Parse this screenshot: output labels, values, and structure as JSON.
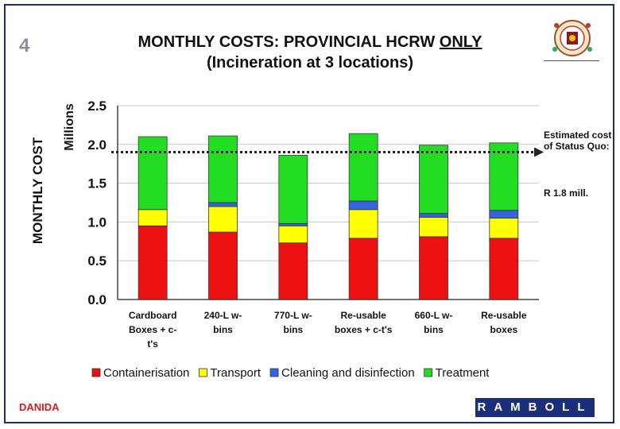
{
  "slide_number": "4",
  "title_part1": "MONTHLY COSTS: PROVINCIAL HCRW ",
  "title_underline": "ONLY",
  "title_line2": "(Incineration at 3 locations)",
  "annotation_line1": "Estimated cost of Status Quo:",
  "annotation_line2": "R 1.8 mill.",
  "footer_left": "DANIDA",
  "footer_right": "RAMBOLL",
  "colors": {
    "containerisation": "#ee1111",
    "transport": "#ffff00",
    "cleaning": "#3366dd",
    "treatment": "#22dd22"
  },
  "chart_data": {
    "type": "bar",
    "stacked": true,
    "ylabel": "MONTHLY COST",
    "yunit": "Millions",
    "ylim": [
      0,
      2.5
    ],
    "yticks": [
      "0.0",
      "0.5",
      "1.0",
      "1.5",
      "2.0",
      "2.5"
    ],
    "categories": [
      [
        "Cardboard",
        "Boxes + c-",
        "t's"
      ],
      [
        "240-L w-",
        "bins"
      ],
      [
        "770-L w-",
        "bins"
      ],
      [
        "Re-usable",
        "boxes + c-t's"
      ],
      [
        "660-L w-",
        "bins"
      ],
      [
        "Re-usable",
        "boxes"
      ]
    ],
    "series": [
      {
        "name": "Containerisation",
        "values": [
          0.95,
          0.87,
          0.73,
          0.79,
          0.81,
          0.79
        ]
      },
      {
        "name": "Transport",
        "values": [
          0.21,
          0.33,
          0.22,
          0.37,
          0.25,
          0.26
        ]
      },
      {
        "name": "Cleaning and disinfection",
        "values": [
          0.0,
          0.05,
          0.03,
          0.11,
          0.05,
          0.1
        ]
      },
      {
        "name": "Treatment",
        "values": [
          0.94,
          0.86,
          0.88,
          0.87,
          0.88,
          0.87
        ]
      }
    ],
    "reference_line": {
      "value": 1.9
    },
    "legend_position": "bottom",
    "grid": true
  }
}
